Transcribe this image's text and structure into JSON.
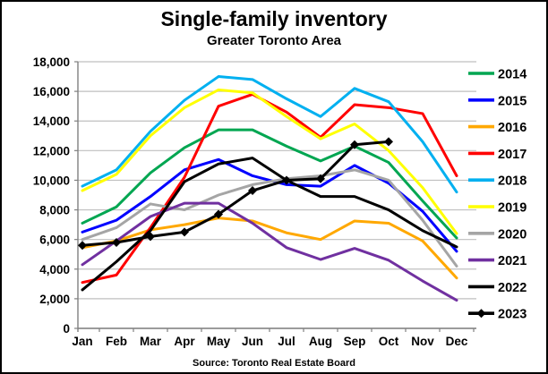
{
  "frame": {
    "title": "Single-family inventory",
    "subtitle": "Greater Toronto Area",
    "source": "Source: Toronto Real Estate Board"
  },
  "chart_data": {
    "type": "line",
    "title": "Single-family inventory",
    "subtitle": "Greater Toronto Area",
    "source": "Source: Toronto Real Estate Board",
    "categories": [
      "Jan",
      "Feb",
      "Mar",
      "Apr",
      "May",
      "Jun",
      "Jul",
      "Aug",
      "Sep",
      "Oct",
      "Nov",
      "Dec"
    ],
    "ylim": [
      0,
      18000
    ],
    "y_tick_step": 2000,
    "y_tick_labels": [
      "0",
      "2,000",
      "4,000",
      "6,000",
      "8,000",
      "10,000",
      "12,000",
      "14,000",
      "16,000",
      "18,000"
    ],
    "grid": true,
    "legend_position": "right",
    "series": [
      {
        "name": "2014",
        "color": "#00A651",
        "marker": "none",
        "values": [
          7100,
          8200,
          10500,
          12200,
          13400,
          13400,
          12300,
          11300,
          12300,
          11200,
          8600,
          6100
        ]
      },
      {
        "name": "2015",
        "color": "#0000FF",
        "marker": "none",
        "values": [
          6500,
          7300,
          8900,
          10700,
          11400,
          10300,
          9700,
          9600,
          11000,
          9800,
          7900,
          5200
        ]
      },
      {
        "name": "2016",
        "color": "#FFA800",
        "marker": "none",
        "values": [
          5450,
          5900,
          6650,
          7000,
          7450,
          7250,
          6450,
          6000,
          7250,
          7100,
          5900,
          3400
        ]
      },
      {
        "name": "2017",
        "color": "#FF0000",
        "marker": "none",
        "values": [
          3100,
          3600,
          6800,
          10200,
          15000,
          15800,
          14600,
          12900,
          15100,
          14900,
          14500,
          10300
        ]
      },
      {
        "name": "2018",
        "color": "#00B0F0",
        "marker": "none",
        "values": [
          9600,
          10700,
          13300,
          15400,
          17000,
          16800,
          15500,
          14300,
          16200,
          15300,
          12600,
          9200
        ]
      },
      {
        "name": "2019",
        "color": "#FFFF00",
        "marker": "none",
        "values": [
          9300,
          10400,
          13000,
          14900,
          16100,
          15900,
          14300,
          12800,
          13800,
          12000,
          9500,
          6400
        ]
      },
      {
        "name": "2020",
        "color": "#A5A5A5",
        "marker": "none",
        "values": [
          6000,
          6800,
          8400,
          8000,
          9000,
          9700,
          10100,
          10300,
          10700,
          10000,
          7300,
          4200
        ]
      },
      {
        "name": "2021",
        "color": "#7030A0",
        "marker": "none",
        "values": [
          4300,
          5900,
          7550,
          8450,
          8450,
          7100,
          5450,
          4650,
          5400,
          4600,
          3200,
          1900
        ]
      },
      {
        "name": "2022",
        "color": "#000000",
        "marker": "none",
        "values": [
          2600,
          4500,
          6600,
          9900,
          11100,
          11500,
          10000,
          8900,
          8900,
          8000,
          6600,
          5500
        ]
      },
      {
        "name": "2023",
        "color": "#000000",
        "marker": "diamond",
        "values": [
          5600,
          5800,
          6200,
          6500,
          7700,
          9300,
          10000,
          10100,
          12400,
          12600,
          null,
          null
        ]
      }
    ]
  }
}
